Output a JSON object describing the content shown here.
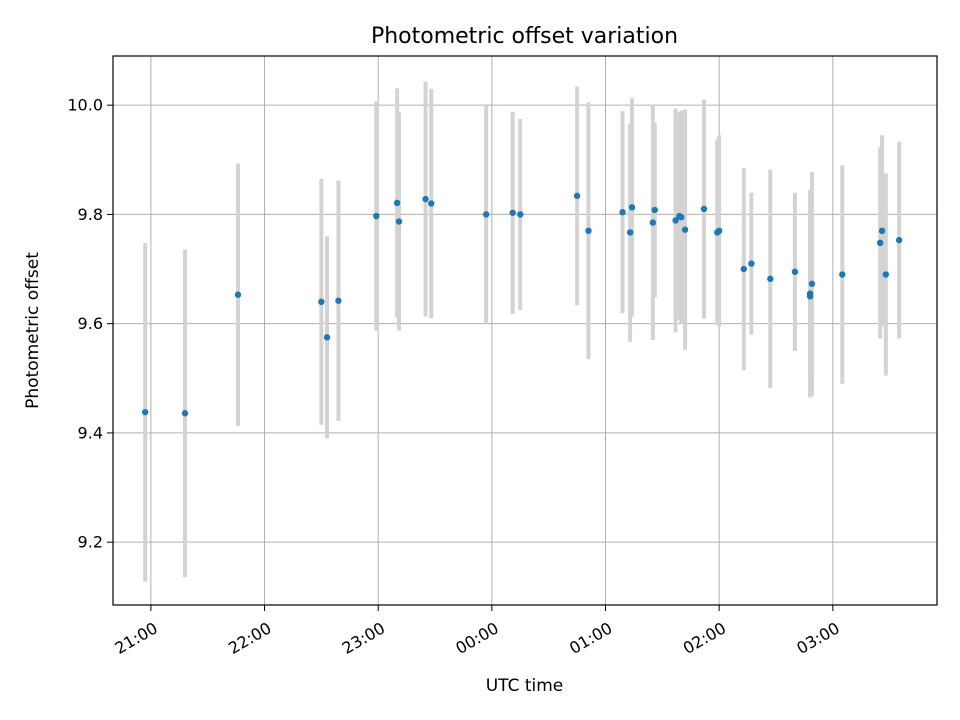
{
  "chart_data": {
    "type": "scatter",
    "title": "Photometric offset variation",
    "xlabel": "UTC time",
    "ylabel": "Photometric offset",
    "xlim": [
      "20:40",
      "03:55"
    ],
    "ylim": [
      9.085,
      10.09
    ],
    "x_ticks": [
      "21:00",
      "22:00",
      "23:00",
      "00:00",
      "01:00",
      "02:00",
      "03:00"
    ],
    "y_ticks": [
      "9.2",
      "9.4",
      "9.6",
      "9.8",
      "10.0"
    ],
    "grid": true,
    "point_color": "#1f77b4",
    "errorbar_color": "#d3d3d3",
    "points": [
      {
        "t": "20:57",
        "y": 9.438,
        "err": 0.31
      },
      {
        "t": "21:18",
        "y": 9.436,
        "err": 0.3
      },
      {
        "t": "21:46",
        "y": 9.653,
        "err": 0.24
      },
      {
        "t": "22:30",
        "y": 9.64,
        "err": 0.225
      },
      {
        "t": "22:33",
        "y": 9.575,
        "err": 0.185
      },
      {
        "t": "22:39",
        "y": 9.642,
        "err": 0.22
      },
      {
        "t": "22:59",
        "y": 9.797,
        "err": 0.21
      },
      {
        "t": "23:10",
        "y": 9.821,
        "err": 0.21
      },
      {
        "t": "23:11",
        "y": 9.787,
        "err": 0.2
      },
      {
        "t": "23:25",
        "y": 9.828,
        "err": 0.215
      },
      {
        "t": "23:28",
        "y": 9.82,
        "err": 0.21
      },
      {
        "t": "23:57",
        "y": 9.8,
        "err": 0.2
      },
      {
        "t": "00:11",
        "y": 9.803,
        "err": 0.185
      },
      {
        "t": "00:15",
        "y": 9.8,
        "err": 0.175
      },
      {
        "t": "00:45",
        "y": 9.834,
        "err": 0.2
      },
      {
        "t": "00:51",
        "y": 9.77,
        "err": 0.235
      },
      {
        "t": "01:09",
        "y": 9.804,
        "err": 0.185
      },
      {
        "t": "01:13",
        "y": 9.767,
        "err": 0.2
      },
      {
        "t": "01:14",
        "y": 9.813,
        "err": 0.2
      },
      {
        "t": "01:25",
        "y": 9.785,
        "err": 0.215
      },
      {
        "t": "01:26",
        "y": 9.808,
        "err": 0.16
      },
      {
        "t": "01:37",
        "y": 9.789,
        "err": 0.205
      },
      {
        "t": "01:39",
        "y": 9.797,
        "err": 0.19
      },
      {
        "t": "01:40",
        "y": 9.795,
        "err": 0.195
      },
      {
        "t": "01:42",
        "y": 9.772,
        "err": 0.22
      },
      {
        "t": "01:52",
        "y": 9.81,
        "err": 0.2
      },
      {
        "t": "01:59",
        "y": 9.767,
        "err": 0.17
      },
      {
        "t": "02:00",
        "y": 9.77,
        "err": 0.175
      },
      {
        "t": "02:13",
        "y": 9.7,
        "err": 0.185
      },
      {
        "t": "02:17",
        "y": 9.71,
        "err": 0.13
      },
      {
        "t": "02:27",
        "y": 9.682,
        "err": 0.2
      },
      {
        "t": "02:40",
        "y": 9.695,
        "err": 0.145
      },
      {
        "t": "02:48",
        "y": 9.65,
        "err": 0.155
      },
      {
        "t": "02:48",
        "y": 9.655,
        "err": 0.19
      },
      {
        "t": "02:49",
        "y": 9.673,
        "err": 0.205
      },
      {
        "t": "03:05",
        "y": 9.69,
        "err": 0.2
      },
      {
        "t": "03:25",
        "y": 9.748,
        "err": 0.175
      },
      {
        "t": "03:26",
        "y": 9.77,
        "err": 0.175
      },
      {
        "t": "03:28",
        "y": 9.69,
        "err": 0.185
      },
      {
        "t": "03:35",
        "y": 9.753,
        "err": 0.18
      }
    ]
  }
}
